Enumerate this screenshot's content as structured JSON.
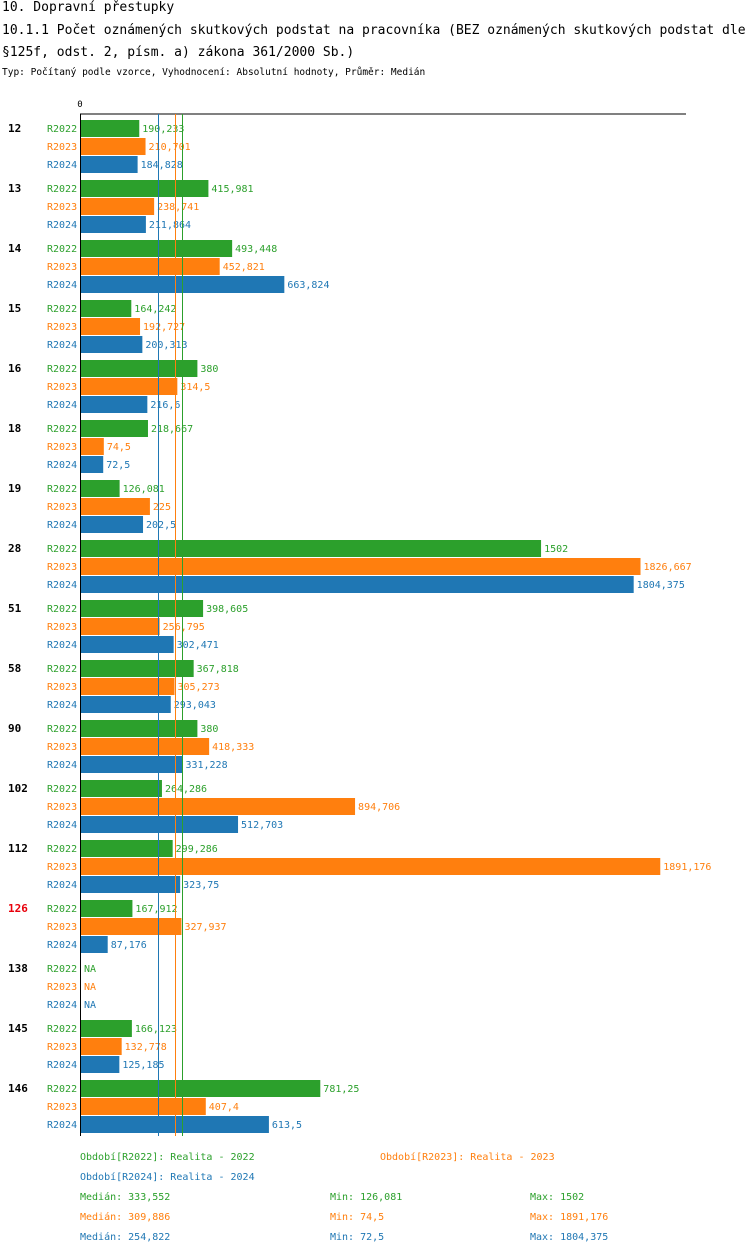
{
  "header": {
    "section": "10. Dopravní přestupky",
    "title": "10.1.1 Počet oznámených skutkových podstat na pracovníka (BEZ oznámených skutkových podstat dle §125f, odst. 2, písm. a) zákona 361/2000 Sb.)",
    "subtitle": "Typ: Počítaný podle vzorce, Vyhodnocení: Absolutní hodnoty, Průměr: Medián"
  },
  "colors": {
    "R2022": "#2ca02c",
    "R2023": "#ff7f0e",
    "R2024": "#1f77b4",
    "highlight": "#e8000b",
    "axis": "#000000"
  },
  "chart_data": {
    "type": "bar",
    "orientation": "horizontal",
    "axis_zero_label": "0",
    "xlim": [
      0,
      1891.176
    ],
    "series_names": [
      "R2022",
      "R2023",
      "R2024"
    ],
    "groups": [
      {
        "label": "12",
        "highlight": false,
        "values": [
          190.233,
          210.701,
          184.828
        ],
        "labels": [
          "190,233",
          "210,701",
          "184,828"
        ]
      },
      {
        "label": "13",
        "highlight": false,
        "values": [
          415.981,
          238.741,
          211.864
        ],
        "labels": [
          "415,981",
          "238,741",
          "211,864"
        ]
      },
      {
        "label": "14",
        "highlight": false,
        "values": [
          493.448,
          452.821,
          663.824
        ],
        "labels": [
          "493,448",
          "452,821",
          "663,824"
        ]
      },
      {
        "label": "15",
        "highlight": false,
        "values": [
          164.242,
          192.727,
          200.313
        ],
        "labels": [
          "164,242",
          "192,727",
          "200,313"
        ]
      },
      {
        "label": "16",
        "highlight": false,
        "values": [
          380,
          314.5,
          216.6
        ],
        "labels": [
          "380",
          "314,5",
          "216,6"
        ]
      },
      {
        "label": "18",
        "highlight": false,
        "values": [
          218.667,
          74.5,
          72.5
        ],
        "labels": [
          "218,667",
          "74,5",
          "72,5"
        ]
      },
      {
        "label": "19",
        "highlight": false,
        "values": [
          126.081,
          225,
          202.5
        ],
        "labels": [
          "126,081",
          "225",
          "202,5"
        ]
      },
      {
        "label": "28",
        "highlight": false,
        "values": [
          1502,
          1826.667,
          1804.375
        ],
        "labels": [
          "1502",
          "1826,667",
          "1804,375"
        ]
      },
      {
        "label": "51",
        "highlight": false,
        "values": [
          398.605,
          256.795,
          302.471
        ],
        "labels": [
          "398,605",
          "256,795",
          "302,471"
        ]
      },
      {
        "label": "58",
        "highlight": false,
        "values": [
          367.818,
          305.273,
          293.043
        ],
        "labels": [
          "367,818",
          "305,273",
          "293,043"
        ]
      },
      {
        "label": "90",
        "highlight": false,
        "values": [
          380,
          418.333,
          331.228
        ],
        "labels": [
          "380",
          "418,333",
          "331,228"
        ]
      },
      {
        "label": "102",
        "highlight": false,
        "values": [
          264.286,
          894.706,
          512.703
        ],
        "labels": [
          "264,286",
          "894,706",
          "512,703"
        ]
      },
      {
        "label": "112",
        "highlight": false,
        "values": [
          299.286,
          1891.176,
          323.75
        ],
        "labels": [
          "299,286",
          "1891,176",
          "323,75"
        ]
      },
      {
        "label": "126",
        "highlight": true,
        "values": [
          167.912,
          327.937,
          87.176
        ],
        "labels": [
          "167,912",
          "327,937",
          "87,176"
        ]
      },
      {
        "label": "138",
        "highlight": false,
        "values": [
          null,
          null,
          null
        ],
        "labels": [
          "NA",
          "NA",
          "NA"
        ]
      },
      {
        "label": "145",
        "highlight": false,
        "values": [
          166.123,
          132.778,
          125.185
        ],
        "labels": [
          "166,123",
          "132,778",
          "125,185"
        ]
      },
      {
        "label": "146",
        "highlight": false,
        "values": [
          781.25,
          407.4,
          613.5
        ],
        "labels": [
          "781,25",
          "407,4",
          "613,5"
        ]
      }
    ],
    "medians": [
      333.552,
      309.886,
      254.822
    ]
  },
  "legend": {
    "periods": [
      {
        "series": "R2022",
        "text": "Období[R2022]: Realita - 2022"
      },
      {
        "series": "R2023",
        "text": "Období[R2023]: Realita - 2023"
      },
      {
        "series": "R2024",
        "text": "Období[R2024]: Realita - 2024"
      }
    ],
    "stats": [
      {
        "series": "R2022",
        "median": "Medián: 333,552",
        "min": "Min: 126,081",
        "max": "Max: 1502"
      },
      {
        "series": "R2023",
        "median": "Medián: 309,886",
        "min": "Min: 74,5",
        "max": "Max: 1891,176"
      },
      {
        "series": "R2024",
        "median": "Medián: 254,822",
        "min": "Min: 72,5",
        "max": "Max: 1804,375"
      }
    ]
  }
}
